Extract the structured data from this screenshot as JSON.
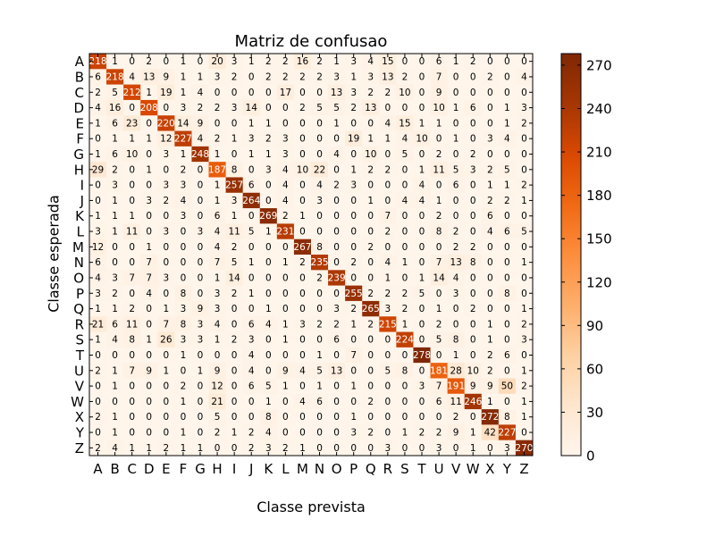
{
  "chart_data": {
    "type": "heatmap",
    "title": "Matriz de confusao",
    "xlabel": "Classe prevista",
    "ylabel": "Classe esperada",
    "x_categories": [
      "A",
      "B",
      "C",
      "D",
      "E",
      "F",
      "G",
      "H",
      "I",
      "J",
      "K",
      "L",
      "M",
      "N",
      "O",
      "P",
      "Q",
      "R",
      "S",
      "T",
      "U",
      "V",
      "W",
      "X",
      "Y",
      "Z"
    ],
    "y_categories": [
      "A",
      "B",
      "C",
      "D",
      "E",
      "F",
      "G",
      "H",
      "I",
      "J",
      "K",
      "L",
      "M",
      "N",
      "O",
      "P",
      "Q",
      "R",
      "S",
      "T",
      "U",
      "V",
      "W",
      "X",
      "Y",
      "Z"
    ],
    "colormap": "Oranges",
    "color_min": 0,
    "color_max": 278,
    "colorbar_ticks": [
      0,
      30,
      60,
      90,
      120,
      150,
      180,
      210,
      240,
      270
    ],
    "grid": false,
    "values": [
      [
        218,
        1,
        0,
        2,
        0,
        1,
        0,
        20,
        3,
        1,
        2,
        2,
        16,
        2,
        1,
        3,
        4,
        15,
        0,
        0,
        6,
        1,
        2,
        0,
        0,
        0
      ],
      [
        6,
        218,
        4,
        13,
        9,
        1,
        1,
        3,
        2,
        0,
        2,
        2,
        2,
        2,
        3,
        1,
        3,
        13,
        2,
        0,
        7,
        0,
        0,
        2,
        0,
        4
      ],
      [
        2,
        5,
        212,
        1,
        19,
        1,
        4,
        0,
        0,
        0,
        0,
        17,
        0,
        0,
        13,
        3,
        2,
        2,
        10,
        0,
        9,
        0,
        0,
        0,
        0,
        0
      ],
      [
        4,
        16,
        0,
        208,
        0,
        3,
        2,
        2,
        3,
        14,
        0,
        0,
        2,
        5,
        5,
        2,
        13,
        0,
        0,
        0,
        10,
        1,
        6,
        0,
        1,
        3
      ],
      [
        1,
        6,
        23,
        0,
        220,
        14,
        9,
        0,
        0,
        1,
        1,
        0,
        0,
        0,
        1,
        0,
        0,
        4,
        15,
        1,
        1,
        0,
        0,
        0,
        1,
        2
      ],
      [
        0,
        1,
        1,
        1,
        12,
        227,
        4,
        2,
        1,
        3,
        2,
        3,
        0,
        0,
        0,
        19,
        1,
        1,
        4,
        10,
        0,
        1,
        0,
        3,
        4,
        0
      ],
      [
        1,
        6,
        10,
        0,
        3,
        1,
        248,
        1,
        0,
        1,
        1,
        3,
        0,
        0,
        4,
        0,
        10,
        0,
        5,
        0,
        2,
        0,
        2,
        0,
        0,
        0
      ],
      [
        29,
        2,
        0,
        1,
        0,
        2,
        0,
        187,
        8,
        0,
        3,
        4,
        10,
        22,
        0,
        1,
        2,
        2,
        0,
        1,
        11,
        5,
        3,
        2,
        5,
        0
      ],
      [
        0,
        3,
        0,
        0,
        3,
        3,
        0,
        1,
        257,
        6,
        0,
        4,
        0,
        4,
        2,
        3,
        0,
        0,
        0,
        4,
        0,
        6,
        0,
        1,
        1,
        2
      ],
      [
        0,
        1,
        0,
        3,
        2,
        4,
        0,
        1,
        3,
        264,
        0,
        4,
        0,
        3,
        0,
        0,
        1,
        0,
        4,
        4,
        1,
        0,
        0,
        2,
        2,
        1
      ],
      [
        1,
        1,
        1,
        0,
        0,
        3,
        0,
        6,
        1,
        0,
        269,
        2,
        1,
        0,
        0,
        0,
        0,
        7,
        0,
        0,
        2,
        0,
        0,
        6,
        0,
        0
      ],
      [
        3,
        1,
        11,
        0,
        3,
        0,
        3,
        4,
        11,
        5,
        1,
        231,
        0,
        0,
        0,
        0,
        0,
        2,
        0,
        0,
        8,
        2,
        0,
        4,
        6,
        5
      ],
      [
        12,
        0,
        0,
        1,
        0,
        0,
        0,
        4,
        2,
        0,
        0,
        0,
        267,
        8,
        0,
        0,
        2,
        0,
        0,
        0,
        0,
        2,
        2,
        0,
        0,
        0
      ],
      [
        6,
        0,
        0,
        7,
        0,
        0,
        0,
        7,
        5,
        1,
        0,
        1,
        2,
        235,
        0,
        2,
        0,
        4,
        1,
        0,
        7,
        13,
        8,
        0,
        0,
        1
      ],
      [
        4,
        3,
        7,
        7,
        3,
        0,
        0,
        1,
        14,
        0,
        0,
        0,
        0,
        2,
        239,
        0,
        0,
        1,
        0,
        1,
        14,
        4,
        0,
        0,
        0,
        0
      ],
      [
        3,
        2,
        0,
        4,
        0,
        8,
        0,
        3,
        2,
        1,
        0,
        0,
        0,
        0,
        0,
        255,
        2,
        2,
        2,
        5,
        0,
        3,
        0,
        0,
        8,
        0
      ],
      [
        1,
        1,
        2,
        0,
        1,
        3,
        9,
        3,
        0,
        0,
        1,
        0,
        0,
        0,
        3,
        2,
        265,
        3,
        2,
        0,
        1,
        0,
        2,
        0,
        0,
        1
      ],
      [
        21,
        6,
        11,
        0,
        7,
        8,
        3,
        4,
        0,
        6,
        4,
        1,
        3,
        2,
        2,
        1,
        2,
        215,
        1,
        0,
        2,
        0,
        0,
        1,
        0,
        2
      ],
      [
        1,
        4,
        8,
        1,
        26,
        3,
        3,
        1,
        2,
        3,
        0,
        1,
        0,
        0,
        6,
        0,
        0,
        0,
        224,
        0,
        5,
        8,
        0,
        1,
        0,
        3
      ],
      [
        0,
        0,
        0,
        0,
        0,
        1,
        0,
        0,
        0,
        4,
        0,
        0,
        0,
        1,
        0,
        7,
        0,
        0,
        0,
        278,
        0,
        1,
        0,
        2,
        6,
        0
      ],
      [
        2,
        1,
        7,
        9,
        1,
        0,
        1,
        9,
        0,
        4,
        0,
        9,
        4,
        5,
        13,
        0,
        0,
        5,
        8,
        0,
        181,
        28,
        10,
        2,
        0,
        1
      ],
      [
        0,
        1,
        0,
        0,
        0,
        2,
        0,
        12,
        0,
        6,
        5,
        1,
        0,
        1,
        0,
        1,
        0,
        0,
        0,
        3,
        7,
        191,
        9,
        9,
        50,
        2
      ],
      [
        0,
        0,
        0,
        0,
        0,
        1,
        0,
        21,
        0,
        0,
        1,
        0,
        4,
        6,
        0,
        0,
        2,
        0,
        0,
        0,
        6,
        11,
        246,
        1,
        0,
        1
      ],
      [
        2,
        1,
        0,
        0,
        0,
        0,
        0,
        5,
        0,
        0,
        8,
        0,
        0,
        0,
        0,
        1,
        0,
        0,
        0,
        0,
        0,
        2,
        0,
        272,
        8,
        1
      ],
      [
        0,
        1,
        0,
        0,
        0,
        1,
        0,
        2,
        1,
        2,
        4,
        0,
        0,
        0,
        0,
        3,
        2,
        0,
        1,
        2,
        2,
        9,
        1,
        42,
        227,
        0
      ],
      [
        2,
        4,
        1,
        1,
        2,
        1,
        1,
        0,
        0,
        2,
        3,
        2,
        1,
        0,
        0,
        0,
        0,
        3,
        0,
        0,
        3,
        0,
        1,
        0,
        3,
        270
      ]
    ]
  }
}
